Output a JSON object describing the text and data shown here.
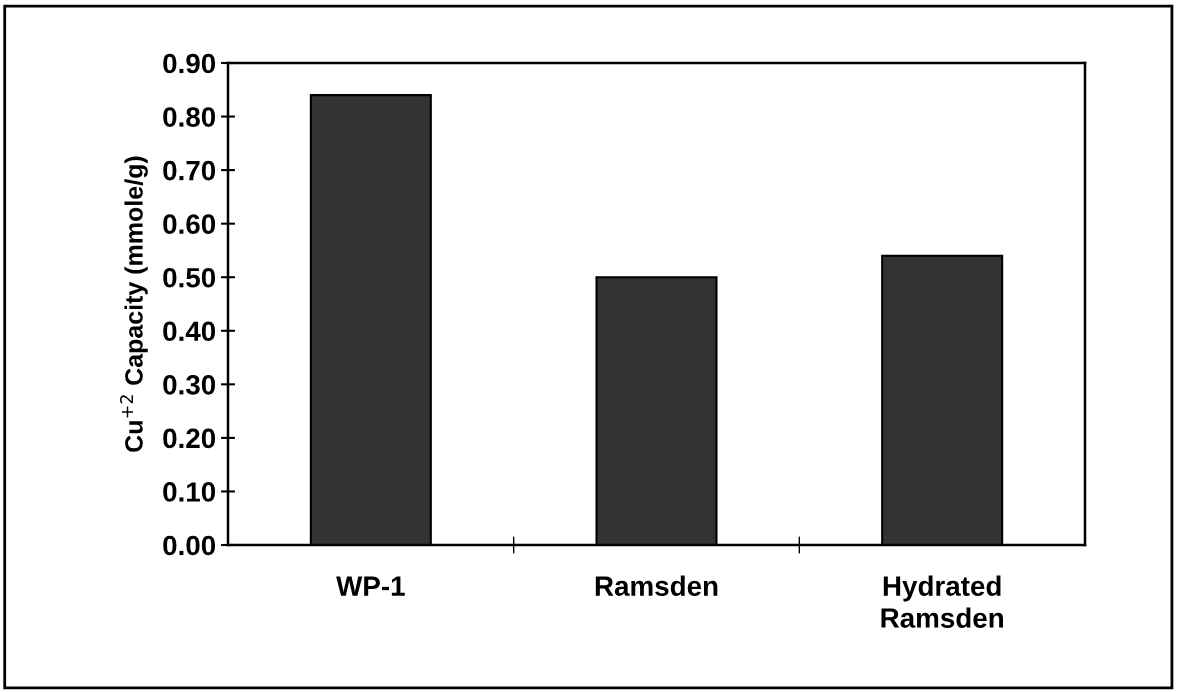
{
  "chart_data": {
    "type": "bar",
    "ylabel": "Cu$^{+2}$ Capacity (mmole/g)",
    "categories": [
      "WP-1",
      "Ramsden",
      "Hydrated\nRamsden"
    ],
    "values": [
      0.84,
      0.5,
      0.54
    ],
    "color": "#333333",
    "ylim": [
      0,
      0.9
    ],
    "yticks": [
      {
        "value": 0,
        "label": "0.00"
      },
      {
        "value": 0.1,
        "label": "0.10"
      },
      {
        "value": 0.2,
        "label": "0.20"
      },
      {
        "value": 0.3,
        "label": "0.30"
      },
      {
        "value": 0.4,
        "label": "0.40"
      },
      {
        "value": 0.5,
        "label": "0.50"
      },
      {
        "value": 0.6,
        "label": "0.60"
      },
      {
        "value": 0.7,
        "label": "0.70"
      },
      {
        "value": 0.8,
        "label": "0.80"
      },
      {
        "value": 0.9,
        "label": "0.90"
      }
    ],
    "grid": false,
    "legend": false
  }
}
